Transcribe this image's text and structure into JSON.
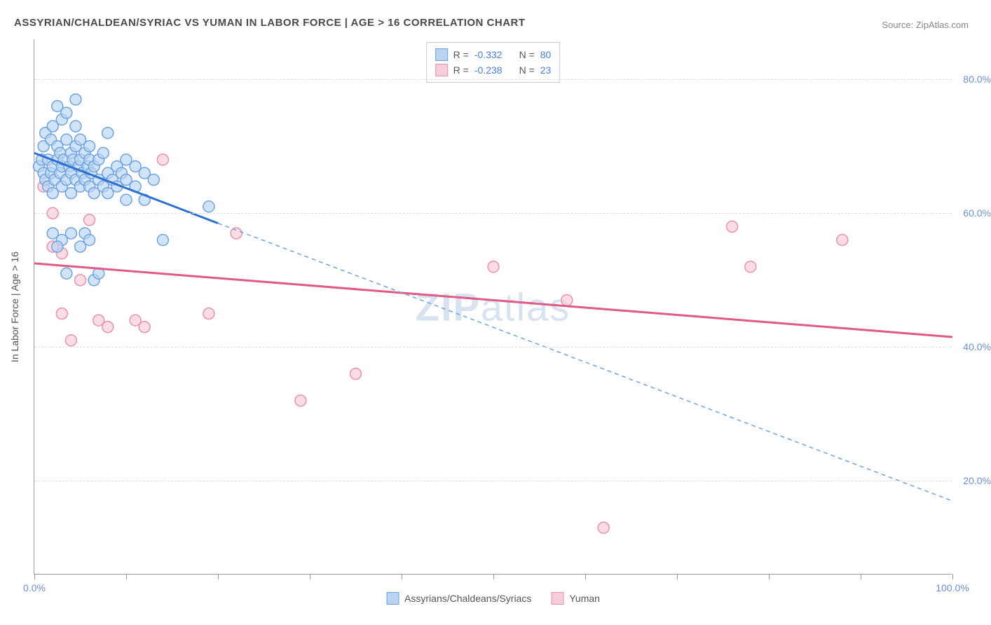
{
  "title": "ASSYRIAN/CHALDEAN/SYRIAC VS YUMAN IN LABOR FORCE | AGE > 16 CORRELATION CHART",
  "source_label": "Source:",
  "source_value": "ZipAtlas.com",
  "watermark": "ZIPatlas",
  "y_axis_title": "In Labor Force | Age > 16",
  "chart": {
    "type": "scatter",
    "xlim": [
      0,
      100
    ],
    "ylim": [
      6,
      86
    ],
    "x_ticks": [
      0,
      10,
      20,
      30,
      40,
      50,
      60,
      70,
      80,
      90,
      100
    ],
    "x_tick_labels": {
      "0": "0.0%",
      "100": "100.0%"
    },
    "y_ticks": [
      20,
      40,
      60,
      80
    ],
    "y_tick_labels": {
      "20": "20.0%",
      "40": "40.0%",
      "60": "60.0%",
      "80": "80.0%"
    },
    "grid_color": "#dddddd",
    "background": "#ffffff",
    "series": [
      {
        "name": "Assyrians/Chaldeans/Syriacs",
        "color_fill": "#b9d4f2",
        "color_stroke": "#6fa3e0",
        "line_color": "#2e6fd0",
        "marker_radius": 8,
        "marker_opacity": 0.65,
        "R": "-0.332",
        "N": "80",
        "trend_solid": {
          "x1": 0,
          "y1": 69,
          "x2": 20,
          "y2": 58.5
        },
        "trend_dashed": {
          "x1": 20,
          "y1": 58.5,
          "x2": 100,
          "y2": 17
        },
        "points": [
          [
            0.5,
            67
          ],
          [
            0.8,
            68
          ],
          [
            1,
            66
          ],
          [
            1,
            70
          ],
          [
            1.2,
            65
          ],
          [
            1.2,
            72
          ],
          [
            1.5,
            64
          ],
          [
            1.5,
            68
          ],
          [
            1.8,
            66
          ],
          [
            1.8,
            71
          ],
          [
            2,
            67
          ],
          [
            2,
            63
          ],
          [
            2,
            73
          ],
          [
            2.2,
            65
          ],
          [
            2.5,
            68
          ],
          [
            2.5,
            70
          ],
          [
            2.5,
            76
          ],
          [
            2.8,
            66
          ],
          [
            2.8,
            69
          ],
          [
            3,
            67
          ],
          [
            3,
            64
          ],
          [
            3,
            74
          ],
          [
            3.2,
            68
          ],
          [
            3.5,
            65
          ],
          [
            3.5,
            71
          ],
          [
            3.5,
            75
          ],
          [
            3.8,
            67
          ],
          [
            4,
            66
          ],
          [
            4,
            69
          ],
          [
            4,
            63
          ],
          [
            4.2,
            68
          ],
          [
            4.5,
            65
          ],
          [
            4.5,
            70
          ],
          [
            4.5,
            73
          ],
          [
            4.8,
            67
          ],
          [
            5,
            64
          ],
          [
            5,
            68
          ],
          [
            5,
            71
          ],
          [
            5.2,
            66
          ],
          [
            5.5,
            65
          ],
          [
            5.5,
            69
          ],
          [
            5.8,
            67
          ],
          [
            6,
            64
          ],
          [
            6,
            68
          ],
          [
            6,
            70
          ],
          [
            6.2,
            66
          ],
          [
            6.5,
            63
          ],
          [
            6.5,
            67
          ],
          [
            7,
            65
          ],
          [
            7,
            68
          ],
          [
            7.5,
            64
          ],
          [
            7.5,
            69
          ],
          [
            8,
            66
          ],
          [
            8,
            63
          ],
          [
            8.5,
            65
          ],
          [
            9,
            67
          ],
          [
            9,
            64
          ],
          [
            9.5,
            66
          ],
          [
            10,
            62
          ],
          [
            10,
            65
          ],
          [
            10,
            68
          ],
          [
            11,
            64
          ],
          [
            12,
            62
          ],
          [
            13,
            65
          ],
          [
            2,
            57
          ],
          [
            3,
            56
          ],
          [
            4,
            57
          ],
          [
            5,
            55
          ],
          [
            5.5,
            57
          ],
          [
            6,
            56
          ],
          [
            6.5,
            50
          ],
          [
            7,
            51
          ],
          [
            2.5,
            55
          ],
          [
            3.5,
            51
          ],
          [
            4.5,
            77
          ],
          [
            14,
            56
          ],
          [
            11,
            67
          ],
          [
            12,
            66
          ],
          [
            19,
            61
          ],
          [
            8,
            72
          ]
        ]
      },
      {
        "name": "Yuman",
        "color_fill": "#f7cdd9",
        "color_stroke": "#e892ab",
        "line_color": "#e05a87",
        "marker_radius": 8,
        "marker_opacity": 0.7,
        "R": "-0.238",
        "N": "23",
        "trend_solid": {
          "x1": 0,
          "y1": 52.5,
          "x2": 100,
          "y2": 41.5
        },
        "points": [
          [
            1,
            64
          ],
          [
            2,
            55
          ],
          [
            2,
            60
          ],
          [
            3,
            54
          ],
          [
            3,
            45
          ],
          [
            4,
            41
          ],
          [
            5,
            50
          ],
          [
            6,
            59
          ],
          [
            7,
            44
          ],
          [
            8,
            43
          ],
          [
            11,
            44
          ],
          [
            12,
            43
          ],
          [
            14,
            68
          ],
          [
            19,
            45
          ],
          [
            22,
            57
          ],
          [
            29,
            32
          ],
          [
            35,
            36
          ],
          [
            50,
            52
          ],
          [
            58,
            47
          ],
          [
            62,
            13
          ],
          [
            76,
            58
          ],
          [
            78,
            52
          ],
          [
            88,
            56
          ]
        ]
      }
    ]
  },
  "legend_bottom": [
    {
      "label": "Assyrians/Chaldeans/Syriacs",
      "fill": "#b9d4f2",
      "stroke": "#6fa3e0"
    },
    {
      "label": "Yuman",
      "fill": "#f7cdd9",
      "stroke": "#e892ab"
    }
  ]
}
